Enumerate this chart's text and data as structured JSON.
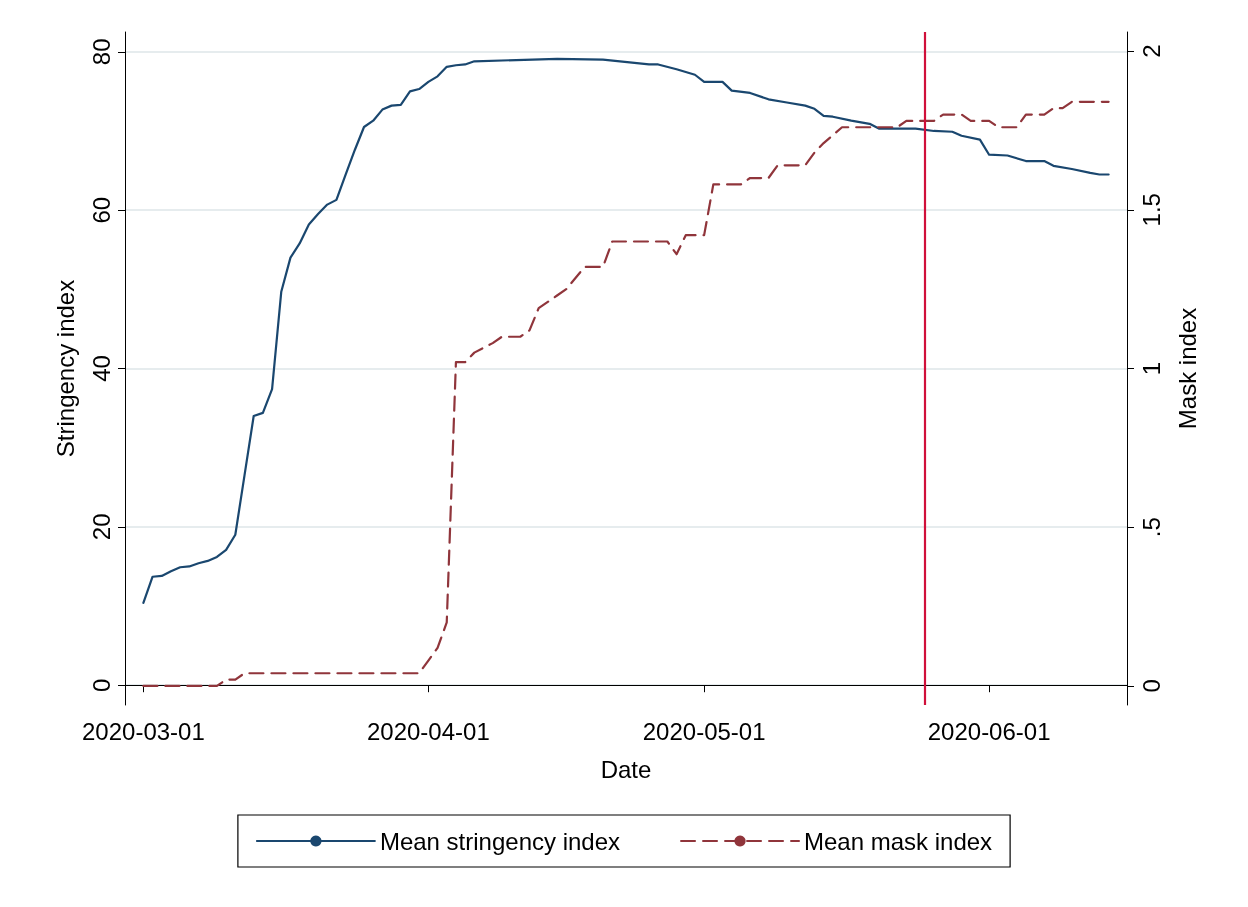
{
  "chart_data": {
    "type": "line",
    "xlabel": "Date",
    "ylabel": "Stringency index",
    "y2label": "Mask index",
    "xlim": [
      "2020-02-28",
      "2020-06-16"
    ],
    "xticks": [
      "2020-03-01",
      "2020-04-01",
      "2020-05-01",
      "2020-06-01"
    ],
    "ylim": [
      -2.5,
      82.5
    ],
    "yticks": [
      0,
      20,
      40,
      60,
      80
    ],
    "y2lim": [
      -0.06,
      2.06
    ],
    "y2ticks": [
      0,
      {
        "value": 0.5,
        "label": ".5"
      },
      1,
      1.5,
      2
    ],
    "grid": "y",
    "legend": "bottom",
    "marker": "none",
    "ref_lines": [
      {
        "axis": "x",
        "value": "2020-05-25",
        "label": null,
        "color": "#d0103a"
      }
    ],
    "series": [
      {
        "name": "Mean stringency index",
        "color": "#1a476f",
        "line_style": "solid",
        "x": [
          "2020-03-01",
          "2020-03-02",
          "2020-03-03",
          "2020-03-04",
          "2020-03-05",
          "2020-03-06",
          "2020-03-07",
          "2020-03-08",
          "2020-03-09",
          "2020-03-10",
          "2020-03-11",
          "2020-03-12",
          "2020-03-13",
          "2020-03-14",
          "2020-03-15",
          "2020-03-16",
          "2020-03-17",
          "2020-03-18",
          "2020-03-19",
          "2020-03-20",
          "2020-03-21",
          "2020-03-22",
          "2020-03-23",
          "2020-03-24",
          "2020-03-25",
          "2020-03-26",
          "2020-03-27",
          "2020-03-28",
          "2020-03-29",
          "2020-03-30",
          "2020-03-31",
          "2020-04-01",
          "2020-04-02",
          "2020-04-03",
          "2020-04-04",
          "2020-04-05",
          "2020-04-06",
          "2020-04-15",
          "2020-04-20",
          "2020-04-25",
          "2020-04-26",
          "2020-04-28",
          "2020-04-30",
          "2020-05-01",
          "2020-05-03",
          "2020-05-04",
          "2020-05-06",
          "2020-05-08",
          "2020-05-10",
          "2020-05-12",
          "2020-05-13",
          "2020-05-14",
          "2020-05-15",
          "2020-05-17",
          "2020-05-19",
          "2020-05-20",
          "2020-05-22",
          "2020-05-24",
          "2020-05-26",
          "2020-05-28",
          "2020-05-29",
          "2020-05-31",
          "2020-06-01",
          "2020-06-03",
          "2020-06-05",
          "2020-06-07",
          "2020-06-08",
          "2020-06-10",
          "2020-06-12",
          "2020-06-13",
          "2020-06-14"
        ],
        "values": [
          10.4,
          13.7,
          13.8,
          14.4,
          14.9,
          15.0,
          15.4,
          15.7,
          16.2,
          17.1,
          19.0,
          26.5,
          34.0,
          34.4,
          37.4,
          49.7,
          54.0,
          55.8,
          58.2,
          59.5,
          60.7,
          61.3,
          64.5,
          67.6,
          70.5,
          71.3,
          72.7,
          73.2,
          73.3,
          75.0,
          75.3,
          76.2,
          76.9,
          78.1,
          78.3,
          78.4,
          78.8,
          79.1,
          79.0,
          78.4,
          78.4,
          77.8,
          77.1,
          76.2,
          76.2,
          75.1,
          74.8,
          74.0,
          73.6,
          73.2,
          72.8,
          71.9,
          71.8,
          71.3,
          70.9,
          70.3,
          70.3,
          70.3,
          70.0,
          69.9,
          69.4,
          68.9,
          67.0,
          66.9,
          66.2,
          66.2,
          65.6,
          65.2,
          64.7,
          64.5,
          64.5
        ]
      },
      {
        "name": "Mean mask index",
        "color": "#90353b",
        "line_style": "dashed",
        "axis": "y2",
        "x": [
          "2020-03-01",
          "2020-03-09",
          "2020-03-10",
          "2020-03-11",
          "2020-03-12",
          "2020-03-31",
          "2020-04-01",
          "2020-04-02",
          "2020-04-03",
          "2020-04-04",
          "2020-04-05",
          "2020-04-06",
          "2020-04-08",
          "2020-04-09",
          "2020-04-11",
          "2020-04-12",
          "2020-04-13",
          "2020-04-15",
          "2020-04-16",
          "2020-04-18",
          "2020-04-20",
          "2020-04-21",
          "2020-04-27",
          "2020-04-28",
          "2020-04-29",
          "2020-05-01",
          "2020-05-02",
          "2020-05-05",
          "2020-05-06",
          "2020-05-08",
          "2020-05-09",
          "2020-05-12",
          "2020-05-13",
          "2020-05-14",
          "2020-05-16",
          "2020-05-22",
          "2020-05-23",
          "2020-05-26",
          "2020-05-27",
          "2020-05-29",
          "2020-05-30",
          "2020-06-01",
          "2020-06-02",
          "2020-06-04",
          "2020-06-05",
          "2020-06-07",
          "2020-06-08",
          "2020-06-09",
          "2020-06-10",
          "2020-06-14"
        ],
        "values": [
          0,
          0,
          0.02,
          0.02,
          0.04,
          0.04,
          0.08,
          0.12,
          0.2,
          1.02,
          1.02,
          1.05,
          1.08,
          1.1,
          1.1,
          1.12,
          1.19,
          1.23,
          1.25,
          1.32,
          1.32,
          1.4,
          1.4,
          1.36,
          1.42,
          1.42,
          1.58,
          1.58,
          1.6,
          1.6,
          1.64,
          1.64,
          1.68,
          1.71,
          1.76,
          1.76,
          1.78,
          1.78,
          1.8,
          1.8,
          1.78,
          1.78,
          1.76,
          1.76,
          1.8,
          1.8,
          1.82,
          1.82,
          1.84,
          1.84
        ]
      }
    ]
  }
}
